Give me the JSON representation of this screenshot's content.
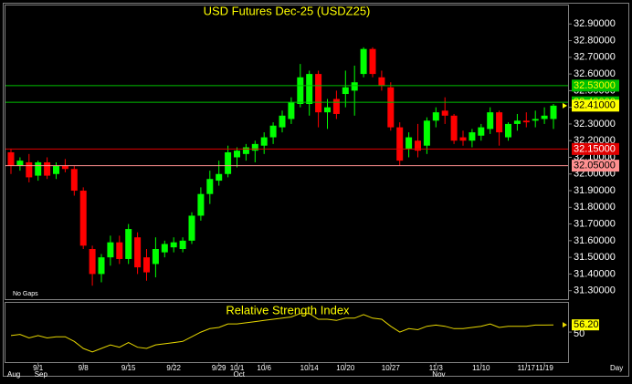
{
  "chart_data": {
    "type": "candlestick",
    "title": "USD Futures Dec-25 (USDZ25)",
    "note": "No Gaps",
    "x_label": "Day",
    "categories": [
      null,
      null,
      null,
      "9/1",
      null,
      null,
      null,
      null,
      "9/8",
      null,
      null,
      null,
      null,
      "9/15",
      null,
      null,
      null,
      null,
      "9/22",
      null,
      null,
      null,
      null,
      "9/29",
      null,
      "10/1",
      null,
      null,
      "10/6",
      null,
      null,
      null,
      null,
      "10/14",
      null,
      null,
      null,
      "10/20",
      null,
      null,
      null,
      null,
      "10/27",
      null,
      null,
      null,
      null,
      "11/3",
      null,
      null,
      null,
      null,
      "11/10",
      null,
      null,
      null,
      null,
      "11/17",
      null,
      "11/19",
      null
    ],
    "month_labels": [
      "Aug",
      null,
      null,
      "Sep",
      null,
      null,
      null,
      null,
      null,
      null,
      null,
      null,
      null,
      null,
      null,
      null,
      null,
      null,
      null,
      null,
      null,
      null,
      null,
      null,
      null,
      "Oct",
      null,
      null,
      null,
      null,
      null,
      null,
      null,
      null,
      null,
      null,
      null,
      null,
      null,
      null,
      null,
      null,
      null,
      null,
      null,
      null,
      null,
      "Nov",
      null,
      null,
      null,
      null,
      null,
      null,
      null,
      null,
      null,
      null,
      null,
      null,
      null
    ],
    "open": [
      32.13,
      32.05,
      32.07,
      31.99,
      32.07,
      32.0,
      32.05,
      32.03,
      31.9,
      31.55,
      31.4,
      31.5,
      31.59,
      31.49,
      31.62,
      31.5,
      31.46,
      31.53,
      31.56,
      31.55,
      31.6,
      31.75,
      31.88,
      31.96,
      32.0,
      32.1,
      32.12,
      32.14,
      32.17,
      32.22,
      32.28,
      32.33,
      32.42,
      32.42,
      32.6,
      32.37,
      32.45,
      32.48,
      32.5,
      32.6,
      32.75,
      32.58,
      32.52,
      32.28,
      32.15,
      32.2,
      32.17,
      32.32,
      32.38,
      32.35,
      32.22,
      32.2,
      32.23,
      32.27,
      32.37,
      32.22,
      32.3,
      32.32,
      32.32,
      32.33,
      32.33
    ],
    "high": [
      32.15,
      32.1,
      32.12,
      32.08,
      32.1,
      32.07,
      32.09,
      32.05,
      31.92,
      31.57,
      31.52,
      31.63,
      31.63,
      31.7,
      31.65,
      31.55,
      31.62,
      31.6,
      31.62,
      31.62,
      31.77,
      31.92,
      32.02,
      32.08,
      32.17,
      32.16,
      32.18,
      32.2,
      32.25,
      32.31,
      32.38,
      32.46,
      32.66,
      32.62,
      32.62,
      32.45,
      32.5,
      32.62,
      32.65,
      32.76,
      32.76,
      32.62,
      32.55,
      32.31,
      32.25,
      32.3,
      32.34,
      32.4,
      32.46,
      32.36,
      32.26,
      32.27,
      32.3,
      32.4,
      32.38,
      32.31,
      32.36,
      32.37,
      32.38,
      32.4,
      32.42
    ],
    "low": [
      32.0,
      32.02,
      31.95,
      31.96,
      31.97,
      31.97,
      32.01,
      31.87,
      31.55,
      31.33,
      31.35,
      31.45,
      31.46,
      31.46,
      31.4,
      31.36,
      31.38,
      31.5,
      31.53,
      31.53,
      31.58,
      31.72,
      31.82,
      31.93,
      31.98,
      32.04,
      32.08,
      32.07,
      32.12,
      32.18,
      32.25,
      32.3,
      32.4,
      32.35,
      32.28,
      32.27,
      32.33,
      32.4,
      32.35,
      32.58,
      32.58,
      32.5,
      32.26,
      32.05,
      32.1,
      32.1,
      32.12,
      32.28,
      32.3,
      32.18,
      32.17,
      32.16,
      32.2,
      32.24,
      32.17,
      32.2,
      32.26,
      32.28,
      32.28,
      32.3,
      32.27
    ],
    "close": [
      32.05,
      32.08,
      31.98,
      32.07,
      31.99,
      32.05,
      32.03,
      31.9,
      31.57,
      31.4,
      31.5,
      31.59,
      31.49,
      31.67,
      31.44,
      31.41,
      31.55,
      31.58,
      31.59,
      31.6,
      31.75,
      31.88,
      31.97,
      32.0,
      32.13,
      32.14,
      32.16,
      32.18,
      32.22,
      32.29,
      32.35,
      32.43,
      32.58,
      32.6,
      32.37,
      32.4,
      32.36,
      32.52,
      32.55,
      32.75,
      32.6,
      32.53,
      32.28,
      32.08,
      32.22,
      32.14,
      32.32,
      32.37,
      32.35,
      32.2,
      32.2,
      32.25,
      32.28,
      32.37,
      32.25,
      32.3,
      32.32,
      32.31,
      32.33,
      32.35,
      32.41
    ],
    "up_color": "#00ff00",
    "down_color": "#ff0000",
    "ylim": [
      31.26,
      33.0
    ],
    "yticks": [
      {
        "value": 31.3,
        "label": "31.30000"
      },
      {
        "value": 31.4,
        "label": "31.40000"
      },
      {
        "value": 31.5,
        "label": "31.50000"
      },
      {
        "value": 31.6,
        "label": "31.60000"
      },
      {
        "value": 31.7,
        "label": "31.70000"
      },
      {
        "value": 31.8,
        "label": "31.80000"
      },
      {
        "value": 31.9,
        "label": "31.90000"
      },
      {
        "value": 32.0,
        "label": "32.00000"
      },
      {
        "value": 32.1,
        "label": "32.10000"
      },
      {
        "value": 32.2,
        "label": "32.20000"
      },
      {
        "value": 32.3,
        "label": "32.30000"
      },
      {
        "value": 32.4,
        "label": "32.40000"
      },
      {
        "value": 32.5,
        "label": "32.50000"
      },
      {
        "value": 32.6,
        "label": "32.60000"
      },
      {
        "value": 32.7,
        "label": "32.70000"
      },
      {
        "value": 32.8,
        "label": "32.80000"
      },
      {
        "value": 32.9,
        "label": "32.90000"
      }
    ],
    "hlines": [
      {
        "value": 32.53,
        "label": "32.53000",
        "color": "#00c000"
      },
      {
        "value": 32.43,
        "label": "32.43000",
        "color": "#00c000"
      },
      {
        "value": 32.15,
        "label": "32.15000",
        "color": "#e00000"
      },
      {
        "value": 32.05,
        "label": "32.05000",
        "color": "#ff9090"
      }
    ],
    "last_price": {
      "value": 32.41,
      "label": "32.41000",
      "color": "#ffff00"
    },
    "rsi": {
      "title": "Relative Strength Index",
      "color": "#e8d800",
      "values": [
        47,
        48,
        45,
        47,
        45,
        46,
        46,
        42,
        36,
        33,
        36,
        39,
        37,
        41,
        37,
        36,
        39,
        40,
        41,
        42,
        46,
        50,
        53,
        54,
        57,
        57,
        58,
        59,
        60,
        61,
        62,
        63,
        66,
        66,
        61,
        61,
        60,
        62,
        62,
        65,
        62,
        61,
        55,
        50,
        53,
        52,
        55,
        56,
        55,
        53,
        53,
        54,
        55,
        57,
        54,
        55,
        55,
        55,
        56,
        56,
        56.2
      ],
      "value_labels": {
        "60": "56.20"
      },
      "ylim": [
        25,
        72
      ],
      "yticks": [
        50
      ]
    }
  }
}
